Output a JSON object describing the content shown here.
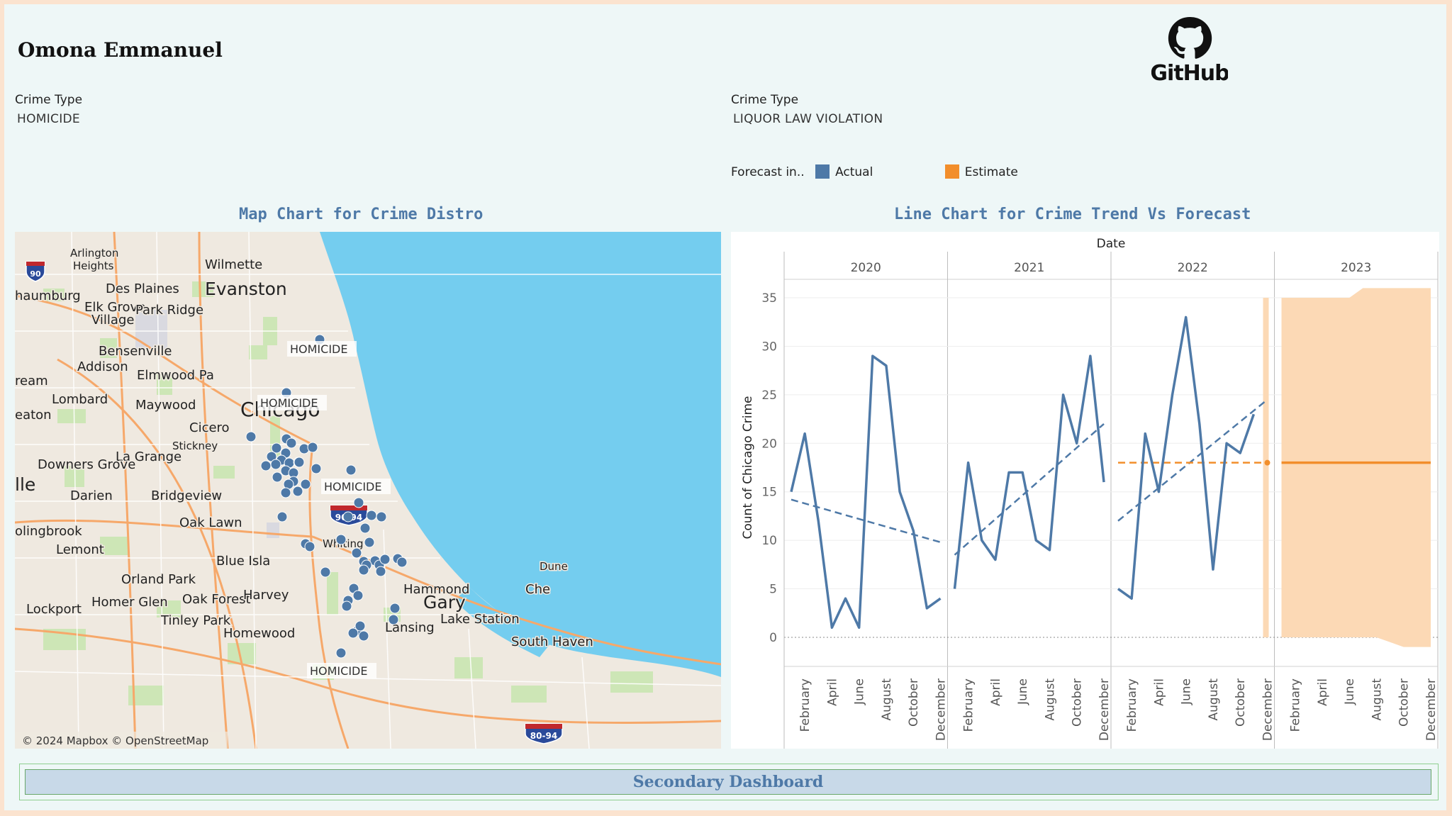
{
  "header": {
    "author": "Omona Emmanuel",
    "logo_text": "GitHub"
  },
  "filters": [
    {
      "label": "Crime Type",
      "value": "HOMICIDE"
    },
    {
      "label": "Crime Type",
      "value": "LIQUOR LAW VIOLATION"
    }
  ],
  "legend": {
    "title": "Forecast in..",
    "items": [
      {
        "label": "Actual",
        "color": "#4e79a7"
      },
      {
        "label": "Estimate",
        "color": "#f28e2b"
      }
    ]
  },
  "map": {
    "title": "Map Chart for Crime Distro",
    "attribution": "© 2024 Mapbox © OpenStreetMap",
    "places": [
      {
        "name": "Arlington",
        "size": 15
      },
      {
        "name": "Heights",
        "size": 15
      },
      {
        "name": "Wilmette",
        "size": 18
      },
      {
        "name": "Evanston",
        "size": 25
      },
      {
        "name": "Des Plaines",
        "size": 18
      },
      {
        "name": "haumburg",
        "size": 18
      },
      {
        "name": "Elk Grove",
        "size": 18
      },
      {
        "name": "Village",
        "size": 18
      },
      {
        "name": "Park Ridge",
        "size": 18
      },
      {
        "name": "Bensenville",
        "size": 18
      },
      {
        "name": "Addison",
        "size": 18
      },
      {
        "name": "Elmwood Pa",
        "size": 18
      },
      {
        "name": "ream",
        "size": 18
      },
      {
        "name": "Lombard",
        "size": 18
      },
      {
        "name": "Maywood",
        "size": 18
      },
      {
        "name": "Chicago",
        "size": 28
      },
      {
        "name": "eaton",
        "size": 18
      },
      {
        "name": "Cicero",
        "size": 18
      },
      {
        "name": "Stickney",
        "size": 15
      },
      {
        "name": "La Grange",
        "size": 18
      },
      {
        "name": "Downers Grove",
        "size": 18
      },
      {
        "name": "lle",
        "size": 25
      },
      {
        "name": "Darien",
        "size": 18
      },
      {
        "name": "Bridgeview",
        "size": 18
      },
      {
        "name": "Oak Lawn",
        "size": 18
      },
      {
        "name": "olingbrook",
        "size": 18
      },
      {
        "name": "Lemont",
        "size": 18
      },
      {
        "name": "Whiting",
        "size": 15
      },
      {
        "name": "Blue Isla",
        "size": 18
      },
      {
        "name": "Orland Park",
        "size": 18
      },
      {
        "name": "Dune",
        "size": 15
      },
      {
        "name": "Hammond",
        "size": 18
      },
      {
        "name": "Homer Glen",
        "size": 18
      },
      {
        "name": "Oak Forest",
        "size": 18
      },
      {
        "name": "Harvey",
        "size": 18
      },
      {
        "name": "Gary",
        "size": 25
      },
      {
        "name": "Che",
        "size": 18
      },
      {
        "name": "Lockport",
        "size": 18
      },
      {
        "name": "Tinley Park",
        "size": 18
      },
      {
        "name": "Lake Station",
        "size": 18
      },
      {
        "name": "Lansing",
        "size": 18
      },
      {
        "name": "Homewood",
        "size": 18
      },
      {
        "name": "South Haven",
        "size": 18
      }
    ],
    "shields": [
      "90",
      "90-94",
      "80-94"
    ],
    "crime_labels": [
      "HOMICIDE",
      "HOMICIDE",
      "HOMICIDE",
      "HOMICIDE"
    ],
    "points_count": 60
  },
  "chart_data": {
    "type": "line",
    "title": "Line Chart for Crime Trend Vs Forecast",
    "header_label": "Date",
    "ylabel": "Count of Chicago Crime",
    "ylim": [
      -3,
      38
    ],
    "yticks": [
      0,
      5,
      10,
      15,
      20,
      25,
      30,
      35
    ],
    "years": [
      "2020",
      "2021",
      "2022",
      "2023"
    ],
    "month_labels": [
      "February",
      "April",
      "June",
      "August",
      "October",
      "December"
    ],
    "series": [
      {
        "name": "Actual",
        "color": "#4e79a7",
        "points": [
          [
            "2020-01",
            15
          ],
          [
            "2020-02",
            21
          ],
          [
            "2020-03",
            12
          ],
          [
            "2020-04",
            1
          ],
          [
            "2020-05",
            4
          ],
          [
            "2020-06",
            1
          ],
          [
            "2020-07",
            29
          ],
          [
            "2020-08",
            28
          ],
          [
            "2020-09",
            15
          ],
          [
            "2020-10",
            11
          ],
          [
            "2020-11",
            3
          ],
          [
            "2020-12",
            4
          ],
          [
            "2021-01",
            5
          ],
          [
            "2021-02",
            18
          ],
          [
            "2021-03",
            10
          ],
          [
            "2021-04",
            8
          ],
          [
            "2021-05",
            17
          ],
          [
            "2021-06",
            17
          ],
          [
            "2021-07",
            10
          ],
          [
            "2021-08",
            9
          ],
          [
            "2021-09",
            25
          ],
          [
            "2021-10",
            20
          ],
          [
            "2021-11",
            29
          ],
          [
            "2021-12",
            16
          ],
          [
            "2022-01",
            5
          ],
          [
            "2022-02",
            4
          ],
          [
            "2022-03",
            21
          ],
          [
            "2022-04",
            15
          ],
          [
            "2022-05",
            25
          ],
          [
            "2022-06",
            33
          ],
          [
            "2022-07",
            22
          ],
          [
            "2022-08",
            7
          ],
          [
            "2022-09",
            20
          ],
          [
            "2022-10",
            19
          ],
          [
            "2022-11",
            23
          ]
        ]
      },
      {
        "name": "Estimate",
        "color": "#f28e2b",
        "points": [
          [
            "2022-12",
            18
          ],
          [
            "2023-01",
            18
          ],
          [
            "2023-02",
            18
          ],
          [
            "2023-03",
            18
          ],
          [
            "2023-04",
            18
          ],
          [
            "2023-05",
            18
          ],
          [
            "2023-06",
            18
          ],
          [
            "2023-07",
            18
          ],
          [
            "2023-08",
            18
          ],
          [
            "2023-09",
            18
          ],
          [
            "2023-10",
            18
          ],
          [
            "2023-11",
            18
          ],
          [
            "2023-12",
            18
          ]
        ]
      }
    ],
    "trend_lines": [
      {
        "color": "#4e79a7",
        "from": [
          "2020-01",
          14.2
        ],
        "to": [
          "2020-12",
          9.8
        ]
      },
      {
        "color": "#4e79a7",
        "from": [
          "2021-01",
          8.5
        ],
        "to": [
          "2021-12",
          22
        ]
      },
      {
        "color": "#4e79a7",
        "from": [
          "2022-01",
          12
        ],
        "to": [
          "2022-12",
          24.5
        ]
      }
    ],
    "reference_line": {
      "color": "#f28e2b",
      "value": 18,
      "from": "2022-01",
      "to": "2022-12"
    },
    "forecast_band": {
      "color": "#fcd9b5",
      "points": [
        [
          "2022-12",
          0,
          35
        ],
        [
          "2023-01",
          0,
          35
        ],
        [
          "2023-02",
          0,
          35
        ],
        [
          "2023-03",
          0,
          35
        ],
        [
          "2023-04",
          0,
          35
        ],
        [
          "2023-05",
          0,
          35
        ],
        [
          "2023-06",
          0,
          35
        ],
        [
          "2023-07",
          0,
          36
        ],
        [
          "2023-08",
          0,
          36
        ],
        [
          "2023-09",
          -0.5,
          36
        ],
        [
          "2023-10",
          -1,
          36
        ],
        [
          "2023-11",
          -1,
          36
        ],
        [
          "2023-12",
          -1,
          36
        ]
      ]
    }
  },
  "buttons": {
    "secondary": "Secondary Dashboard"
  }
}
